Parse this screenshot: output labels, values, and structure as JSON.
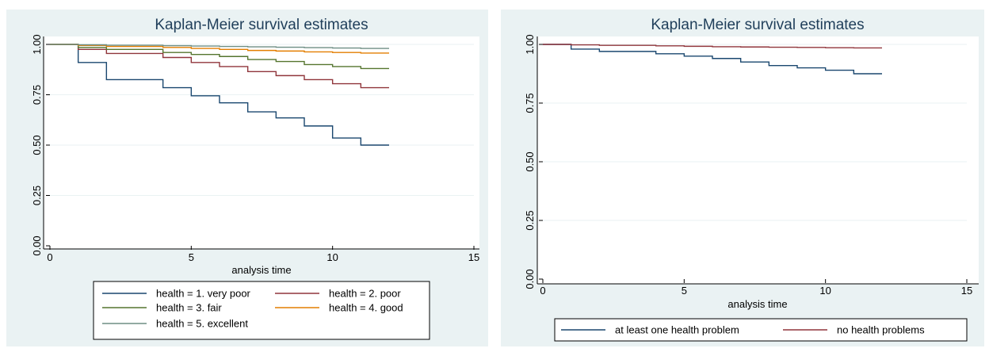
{
  "chart_data": [
    {
      "type": "line",
      "step": true,
      "title": "Kaplan-Meier survival estimates",
      "xlabel": "analysis time",
      "ylabel": "",
      "xlim": [
        0,
        15
      ],
      "ylim": [
        0,
        1
      ],
      "xticks": [
        "0",
        "5",
        "10",
        "15"
      ],
      "yticks": [
        "0.00",
        "0.25",
        "0.50",
        "0.75",
        "1.00"
      ],
      "grid": true,
      "legend_position": "bottom",
      "series": [
        {
          "name": "health = 1. very poor",
          "color": "#1a476f",
          "x": [
            0,
            1,
            2,
            4,
            5,
            6,
            7,
            8,
            9,
            10,
            11,
            12
          ],
          "y": [
            1.0,
            0.91,
            0.825,
            0.785,
            0.745,
            0.71,
            0.665,
            0.635,
            0.595,
            0.535,
            0.5,
            0.5
          ]
        },
        {
          "name": "health = 2. poor",
          "color": "#90353b",
          "x": [
            0,
            1,
            2,
            4,
            5,
            6,
            7,
            8,
            9,
            10,
            11,
            12
          ],
          "y": [
            1.0,
            0.975,
            0.955,
            0.935,
            0.91,
            0.89,
            0.865,
            0.845,
            0.825,
            0.805,
            0.785,
            0.785
          ]
        },
        {
          "name": "health = 3. fair",
          "color": "#55752f",
          "x": [
            0,
            1,
            2,
            4,
            5,
            6,
            7,
            8,
            9,
            10,
            11,
            12
          ],
          "y": [
            1.0,
            0.985,
            0.975,
            0.96,
            0.95,
            0.94,
            0.925,
            0.915,
            0.9,
            0.89,
            0.88,
            0.88
          ]
        },
        {
          "name": "health = 4. good",
          "color": "#e37e00",
          "x": [
            0,
            1,
            2,
            4,
            5,
            6,
            7,
            8,
            9,
            10,
            11,
            12
          ],
          "y": [
            1.0,
            0.995,
            0.99,
            0.985,
            0.98,
            0.975,
            0.97,
            0.967,
            0.963,
            0.96,
            0.957,
            0.957
          ]
        },
        {
          "name": "health = 5. excellent",
          "color": "#6e8e84",
          "x": [
            0,
            1,
            2,
            4,
            5,
            6,
            7,
            8,
            9,
            10,
            11,
            12
          ],
          "y": [
            1.0,
            0.998,
            0.996,
            0.994,
            0.992,
            0.99,
            0.988,
            0.986,
            0.984,
            0.982,
            0.98,
            0.98
          ]
        }
      ]
    },
    {
      "type": "line",
      "step": true,
      "title": "Kaplan-Meier survival estimates",
      "xlabel": "analysis time",
      "ylabel": "",
      "xlim": [
        0,
        15
      ],
      "ylim": [
        0,
        1
      ],
      "xticks": [
        "0",
        "5",
        "10",
        "15"
      ],
      "yticks": [
        "0.00",
        "0.25",
        "0.50",
        "0.75",
        "1.00"
      ],
      "grid": true,
      "legend_position": "bottom",
      "series": [
        {
          "name": "at least one health problem",
          "color": "#1a476f",
          "x": [
            0,
            1,
            2,
            4,
            5,
            6,
            7,
            8,
            9,
            10,
            11,
            12
          ],
          "y": [
            1.0,
            0.98,
            0.97,
            0.96,
            0.95,
            0.94,
            0.925,
            0.91,
            0.9,
            0.89,
            0.875,
            0.875
          ]
        },
        {
          "name": "no health problems",
          "color": "#90353b",
          "x": [
            0,
            1,
            2,
            4,
            5,
            6,
            7,
            8,
            9,
            10,
            11,
            12
          ],
          "y": [
            1.0,
            0.998,
            0.996,
            0.994,
            0.992,
            0.99,
            0.989,
            0.988,
            0.987,
            0.986,
            0.985,
            0.985
          ]
        }
      ]
    }
  ]
}
